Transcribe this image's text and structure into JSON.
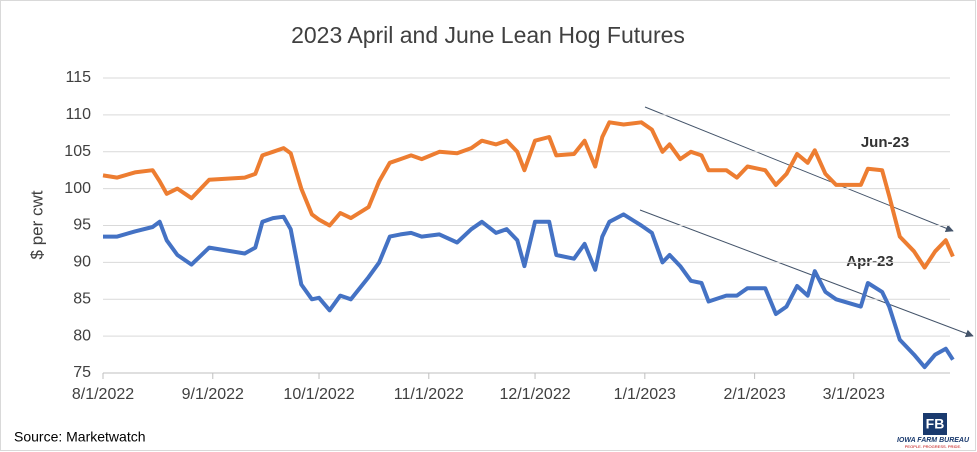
{
  "chart_data": {
    "type": "line",
    "title": "2023 April and June Lean Hog Futures",
    "y_label": "$ per cwt",
    "source": "Source: Marketwatch",
    "logo_text": "IOWA FARM BUREAU",
    "logo_tagline": "PEOPLE. PROGRESS. PRIDE.",
    "annotations": [
      "Jun-23",
      "Apr-23"
    ],
    "grid": true,
    "x": [
      "2022-08-01",
      "2022-08-05",
      "2022-08-10",
      "2022-08-15",
      "2022-08-17",
      "2022-08-19",
      "2022-08-22",
      "2022-08-26",
      "2022-08-31",
      "2022-09-10",
      "2022-09-13",
      "2022-09-15",
      "2022-09-18",
      "2022-09-21",
      "2022-09-23",
      "2022-09-26",
      "2022-09-29",
      "2022-10-01",
      "2022-10-04",
      "2022-10-07",
      "2022-10-10",
      "2022-10-15",
      "2022-10-18",
      "2022-10-21",
      "2022-10-24",
      "2022-10-27",
      "2022-10-30",
      "2022-11-04",
      "2022-11-09",
      "2022-11-13",
      "2022-11-16",
      "2022-11-20",
      "2022-11-23",
      "2022-11-26",
      "2022-11-28",
      "2022-12-01",
      "2022-12-05",
      "2022-12-07",
      "2022-12-12",
      "2022-12-15",
      "2022-12-18",
      "2022-12-20",
      "2022-12-22",
      "2022-12-26",
      "2022-12-31",
      "2023-01-03",
      "2023-01-06",
      "2023-01-08",
      "2023-01-11",
      "2023-01-14",
      "2023-01-17",
      "2023-01-19",
      "2023-01-24",
      "2023-01-27",
      "2023-01-30",
      "2023-02-04",
      "2023-02-07",
      "2023-02-10",
      "2023-02-13",
      "2023-02-16",
      "2023-02-18",
      "2023-02-21",
      "2023-02-24",
      "2023-03-03",
      "2023-03-05",
      "2023-03-09",
      "2023-03-11",
      "2023-03-14",
      "2023-03-18",
      "2023-03-21",
      "2023-03-24",
      "2023-03-27",
      "2023-03-29"
    ],
    "series": [
      {
        "name": "Jun-23",
        "color": "#ed7d31",
        "values": [
          101.8,
          101.5,
          102.2,
          102.5,
          101,
          99.3,
          100,
          98.7,
          101.2,
          101.5,
          102,
          104.5,
          105,
          105.5,
          104.8,
          100,
          96.5,
          95.8,
          95,
          96.7,
          96,
          97.5,
          101,
          103.5,
          104,
          104.5,
          104,
          105,
          104.8,
          105.5,
          106.5,
          106,
          106.5,
          105,
          102.5,
          106.5,
          107,
          104.5,
          104.7,
          106.5,
          103,
          107,
          109,
          108.7,
          109,
          108,
          105,
          106,
          104,
          105,
          104.5,
          102.5,
          102.5,
          101.5,
          103,
          102.5,
          100.5,
          102,
          104.7,
          103.5,
          105.2,
          102,
          100.5,
          100.5,
          102.7,
          102.5,
          99,
          93.5,
          91.5,
          89.3,
          91.5,
          93,
          90.8
        ]
      },
      {
        "name": "Apr-23",
        "color": "#4472c4",
        "values": [
          93.5,
          93.5,
          94.2,
          94.8,
          95.5,
          93,
          91,
          89.7,
          92,
          91.2,
          92,
          95.5,
          96,
          96.2,
          94.5,
          87,
          85,
          85.2,
          83.5,
          85.5,
          85,
          88,
          90,
          93.5,
          93.8,
          94,
          93.5,
          93.8,
          92.7,
          94.5,
          95.5,
          94,
          94.5,
          93,
          89.5,
          95.5,
          95.5,
          91,
          90.5,
          92.5,
          89,
          93.5,
          95.5,
          96.5,
          95,
          94,
          90,
          91,
          89.5,
          87.5,
          87.2,
          84.7,
          85.5,
          85.5,
          86.5,
          86.5,
          83,
          84,
          86.8,
          85.5,
          88.8,
          86,
          85,
          84,
          87.2,
          86,
          84,
          79.5,
          77.5,
          75.8,
          77.5,
          78.3,
          76.8
        ]
      }
    ],
    "xlim": [
      "2022-08-01",
      "2023-03-31"
    ],
    "xticks": [
      {
        "value": "2022-08-01",
        "label": "8/1/2022"
      },
      {
        "value": "2022-09-01",
        "label": "9/1/2022"
      },
      {
        "value": "2022-10-01",
        "label": "10/1/2022"
      },
      {
        "value": "2022-11-01",
        "label": "11/1/2022"
      },
      {
        "value": "2022-12-01",
        "label": "12/1/2022"
      },
      {
        "value": "2023-01-01",
        "label": "1/1/2023"
      },
      {
        "value": "2023-02-01",
        "label": "2/1/2023"
      },
      {
        "value": "2023-03-01",
        "label": "3/1/2023"
      }
    ],
    "ylim": [
      75,
      115
    ],
    "yticks": [
      75,
      80,
      85,
      90,
      95,
      100,
      105,
      110,
      115
    ]
  }
}
